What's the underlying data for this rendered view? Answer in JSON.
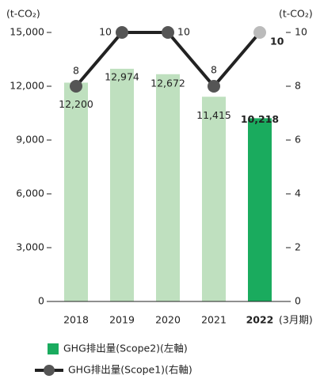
{
  "chart_data": {
    "type": "bar",
    "y_label": "(t-CO₂)",
    "y2_label": "(t-CO₂)",
    "x_label": "(3月期)",
    "categories": [
      "2018",
      "2019",
      "2020",
      "2021",
      "2022"
    ],
    "highlight": "2022",
    "series": [
      {
        "name": "GHG排出量(Scope2)(左軸)",
        "type": "bar",
        "color": "#1aab5e",
        "colors": [
          "#bfe0bf",
          "#bfe0bf",
          "#bfe0bf",
          "#bfe0bf",
          "#1aab5e"
        ],
        "values": [
          12200,
          12974,
          12672,
          11415,
          10218
        ],
        "value_labels": [
          "12,200",
          "12,974",
          "12,672",
          "11,415",
          "10,218"
        ]
      },
      {
        "name": "GHG排出量(Scope1)(右軸)",
        "type": "line",
        "axis": "y2",
        "color": "#222222",
        "marker_colors": [
          "#555555",
          "#555555",
          "#555555",
          "#555555",
          "#bbbbbb"
        ],
        "values": [
          8,
          10,
          10,
          8,
          10
        ]
      }
    ],
    "ylim": [
      0,
      15000
    ],
    "yticks": [
      0,
      {
        "value": 3000,
        "label": "3,000"
      },
      {
        "value": 6000,
        "label": "6,000"
      },
      {
        "value": 9000,
        "label": "9,000"
      },
      {
        "value": 12000,
        "label": "12,000"
      },
      {
        "value": 15000,
        "label": "15,000"
      }
    ],
    "y2lim": [
      0,
      10
    ],
    "y2ticks": [
      0,
      2,
      4,
      6,
      8,
      10
    ]
  }
}
